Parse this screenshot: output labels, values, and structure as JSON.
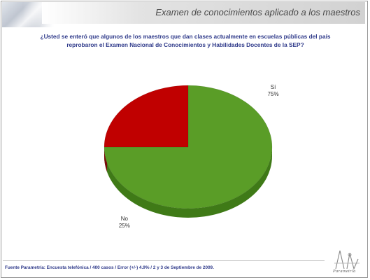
{
  "header": {
    "title": "Examen de conocimientos aplicado a los maestros"
  },
  "question": {
    "line1": "¿Usted se enteró que algunos de los maestros que dan clases actualmente en escuelas públicas del país",
    "line2": "reprobaron el Examen Nacional de Conocimientos y Habilidades Docentes de la SEP?"
  },
  "footer": {
    "source": "Fuente Parametría: Encuesta telefónica / 400 casos / Error (+/-) 4.9% / 2 y 3 de Septiembre  de 2009."
  },
  "logo": {
    "text": "Parametría"
  },
  "colors": {
    "si": "#5a9d27",
    "si_side": "#3f7a17",
    "no": "#c00000",
    "no_side": "#7a0a0a",
    "question_text": "#2f3a8a"
  },
  "chart_data": {
    "type": "pie",
    "style": "3d",
    "slices": [
      {
        "label": "Sí",
        "value": 75,
        "value_label": "75%"
      },
      {
        "label": "No",
        "value": 25,
        "value_label": "25%"
      }
    ]
  }
}
